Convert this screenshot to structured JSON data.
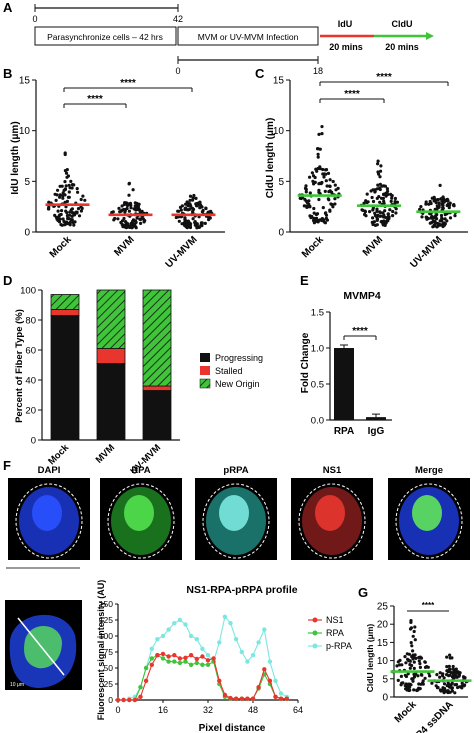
{
  "panel_letters": {
    "A": "A",
    "B": "B",
    "C": "C",
    "D": "D",
    "E": "E",
    "F": "F",
    "G": "G"
  },
  "panel_a": {
    "tick_start": "0",
    "tick_42": "42",
    "tick_0b": "0",
    "tick_18": "18",
    "box1": "Parasynchronize cells – 42 hrs",
    "box2": "MVM or UV-MVM Infection",
    "idu_label": "IdU",
    "cldu_label": "CldU",
    "idu_time": "20 mins",
    "cldu_time": "20 mins",
    "colors": {
      "idu": "#e8362f",
      "cldu": "#3fc43a"
    }
  },
  "panel_b": {
    "ylabel": "IdU length (μm)",
    "sig1": "****",
    "sig2": "****"
  },
  "panel_c": {
    "ylabel": "CldU length (μm)",
    "sig1": "****",
    "sig2": "****"
  },
  "panel_d": {
    "ylabel": "Percent of Fiber Type (%)",
    "legend": [
      "Progressing",
      "Stalled",
      "New Origin"
    ]
  },
  "panel_e": {
    "title": "MVMP4",
    "ylabel": "Fold Change",
    "sig": "****"
  },
  "panel_f": {
    "channels": [
      "DAPI",
      "RPA",
      "pRPA",
      "NS1",
      "Merge"
    ],
    "profile_title": "NS1-RPA-pRPA profile",
    "ylabel": "Fluorescent signal intensity (AU)",
    "xlabel": "Pixel distance",
    "legend": [
      "NS1",
      "RPA",
      "p-RPA"
    ],
    "scale_text": "10 μm"
  },
  "panel_g": {
    "ylabel": "CldU length (μm)",
    "sig": "****"
  },
  "chart_data": [
    {
      "id": "B",
      "type": "scatter",
      "categories": [
        "Mock",
        "MVM",
        "UV-MVM"
      ],
      "medians": [
        2.7,
        1.7,
        1.7
      ],
      "ylim": [
        0,
        15
      ],
      "yticks": [
        0,
        5,
        10,
        15
      ],
      "ylabel": "IdU length (μm)",
      "median_color": "#e8362f",
      "max_points": [
        7.8,
        4.8,
        3.6
      ]
    },
    {
      "id": "C",
      "type": "scatter",
      "categories": [
        "Mock",
        "MVM",
        "UV-MVM"
      ],
      "medians": [
        3.6,
        2.6,
        2.0
      ],
      "ylim": [
        0,
        15
      ],
      "yticks": [
        0,
        5,
        10,
        15
      ],
      "ylabel": "CldU length (μm)",
      "median_color": "#3fc43a",
      "max_points": [
        10.4,
        7.0,
        4.6
      ]
    },
    {
      "id": "D",
      "type": "bar",
      "stacked": true,
      "categories": [
        "Mock",
        "MVM",
        "UV-MVM"
      ],
      "series": [
        {
          "name": "Progressing",
          "values": [
            83,
            51,
            33
          ],
          "color": "#111111"
        },
        {
          "name": "Stalled",
          "values": [
            4,
            10,
            3
          ],
          "color": "#e8362f"
        },
        {
          "name": "New Origin",
          "values": [
            10,
            39,
            64
          ],
          "color": "#3fc43a"
        }
      ],
      "ylim": [
        0,
        100
      ],
      "yticks": [
        0,
        20,
        40,
        60,
        80,
        100
      ],
      "ylabel": "Percent of Fiber Type (%)"
    },
    {
      "id": "E",
      "type": "bar",
      "title": "MVMP4",
      "categories": [
        "RPA",
        "IgG"
      ],
      "values": [
        1.0,
        0.04
      ],
      "ylim": [
        0,
        1.5
      ],
      "yticks": [
        0.0,
        0.5,
        1.0,
        1.5
      ],
      "ylabel": "Fold Change"
    },
    {
      "id": "F",
      "type": "line",
      "title": "NS1-RPA-pRPA profile",
      "x": [
        0,
        2,
        4,
        6,
        8,
        10,
        12,
        14,
        16,
        18,
        20,
        22,
        24,
        26,
        28,
        30,
        32,
        34,
        36,
        38,
        40,
        42,
        44,
        46,
        48,
        50,
        52,
        54,
        56,
        58,
        60
      ],
      "series": [
        {
          "name": "NS1",
          "color": "#e8362f",
          "values": [
            0,
            0,
            0,
            0,
            5,
            30,
            55,
            70,
            72,
            68,
            70,
            65,
            66,
            70,
            64,
            68,
            62,
            65,
            30,
            8,
            3,
            2,
            2,
            2,
            2,
            20,
            48,
            30,
            5,
            2,
            2
          ]
        },
        {
          "name": "RPA",
          "color": "#3fc43a",
          "values": [
            0,
            0,
            0,
            0,
            20,
            50,
            65,
            70,
            65,
            60,
            60,
            58,
            60,
            55,
            58,
            55,
            55,
            60,
            25,
            5,
            2,
            2,
            2,
            2,
            2,
            18,
            40,
            25,
            5,
            2,
            2
          ]
        },
        {
          "name": "p-RPA",
          "color": "#7ae8e0",
          "values": [
            0,
            0,
            2,
            5,
            20,
            50,
            80,
            95,
            100,
            110,
            120,
            125,
            118,
            100,
            95,
            80,
            70,
            60,
            90,
            130,
            120,
            95,
            75,
            60,
            70,
            90,
            110,
            60,
            30,
            10,
            5
          ]
        }
      ],
      "xticks": [
        0,
        16,
        32,
        48,
        64
      ],
      "yticks": [
        0,
        25,
        50,
        75,
        100,
        125,
        150
      ],
      "xlim": [
        0,
        64
      ],
      "ylim": [
        0,
        150
      ],
      "xlabel": "Pixel distance",
      "ylabel": "Fluorescent signal intensity (AU)"
    },
    {
      "id": "G",
      "type": "scatter",
      "categories": [
        "Mock",
        "P4 ssDNA"
      ],
      "medians": [
        7.0,
        4.5
      ],
      "ylim": [
        0,
        25
      ],
      "yticks": [
        0,
        5,
        10,
        15,
        20,
        25
      ],
      "ylabel": "CldU length (μm)",
      "median_color": "#3fc43a",
      "max_points": [
        21,
        11.5
      ]
    }
  ]
}
